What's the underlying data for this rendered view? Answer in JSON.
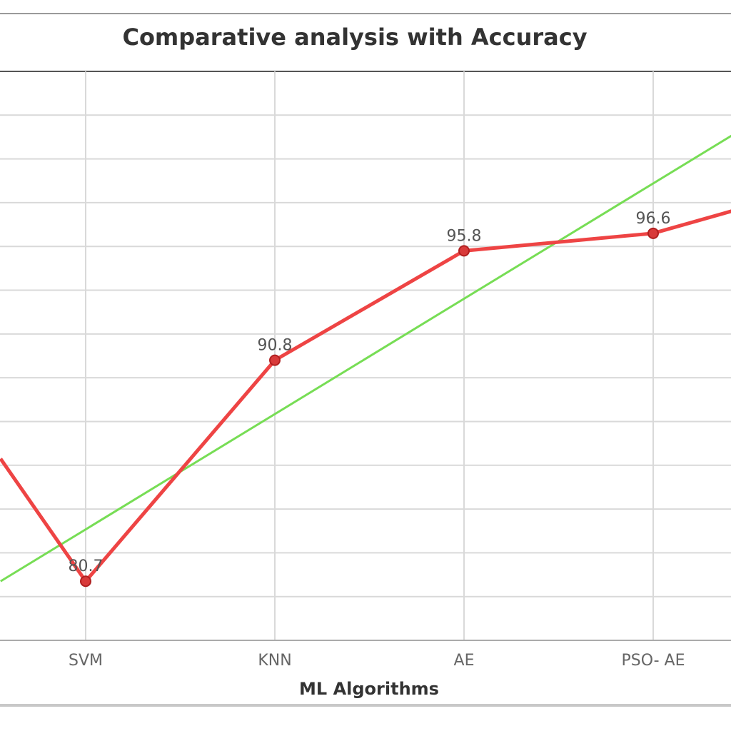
{
  "chart_data": {
    "type": "line",
    "title": "Comparative analysis with Accuracy",
    "xlabel": "ML Algorithms",
    "ylabel": "",
    "categories": [
      "SVM",
      "KNN",
      "AE",
      "PSO- AE"
    ],
    "series": [
      {
        "values": [
          80.7,
          90.8,
          95.8,
          96.6
        ],
        "color": "#ee4444",
        "marker": "circle",
        "data_labels": [
          "80.7",
          "90.8",
          "95.8",
          "96.6"
        ]
      },
      {
        "type": "trendline",
        "color": "#77dd55"
      }
    ],
    "ylim": [
      78,
      104
    ],
    "grid": true,
    "legend": "none"
  }
}
